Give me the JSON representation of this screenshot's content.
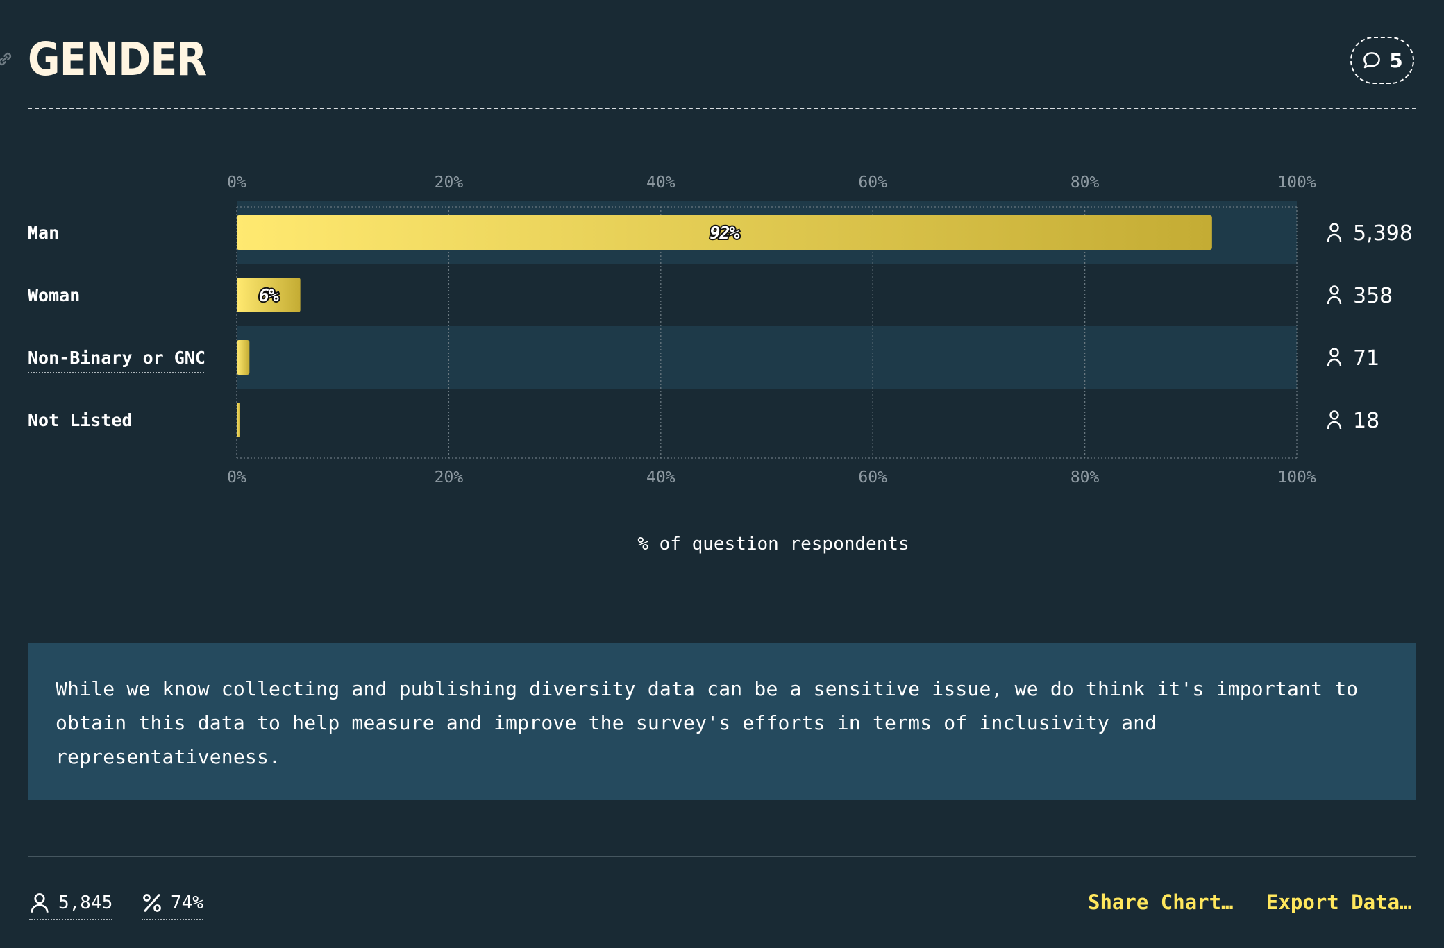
{
  "header": {
    "title": "GENDER",
    "comments_count": "5"
  },
  "chart_data": {
    "type": "bar",
    "orientation": "horizontal",
    "categories": [
      "Man",
      "Woman",
      "Non-Binary or GNC",
      "Not Listed"
    ],
    "values": [
      92,
      6,
      1.2,
      0.3
    ],
    "value_labels": [
      "92%",
      "6%",
      "",
      ""
    ],
    "counts": [
      "5,398",
      "358",
      "71",
      "18"
    ],
    "xlim": [
      0,
      100
    ],
    "ticks": [
      "0%",
      "20%",
      "40%",
      "60%",
      "80%",
      "100%"
    ],
    "xlabel": "% of question respondents",
    "grid": true,
    "colors": {
      "bar_start": "#ffe970",
      "bar_end": "#c4ac34",
      "row_alt": "#1e3a49"
    }
  },
  "note": {
    "text": "While we know collecting and publishing diversity data can be a sensitive issue, we do think it's important to obtain this data to help measure and improve the survey's efforts in terms of inclusivity and representativeness."
  },
  "footer": {
    "respondents": "5,845",
    "percentage": "74%",
    "share_label": "Share Chart…",
    "export_label": "Export Data…"
  },
  "icons": [
    "link-icon",
    "comment-icon",
    "user-icon",
    "percent-icon"
  ]
}
